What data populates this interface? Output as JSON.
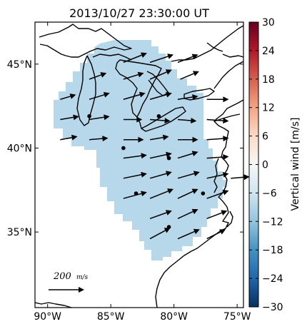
{
  "title": "2013/10/27 23:30:00 UT",
  "map": {
    "lat_ticks": [
      "45°N",
      "40°N",
      "35°N"
    ],
    "lat_values": [
      45,
      40,
      35
    ],
    "lon_ticks": [
      "90°W",
      "85°W",
      "80°W",
      "75°W"
    ],
    "lon_values": [
      -90,
      -85,
      -80,
      -75
    ],
    "extent": {
      "lon_min": -91.0,
      "lon_max": -74.5,
      "lat_min": 30.5,
      "lat_max": 47.5
    },
    "coverage_color": "#b7d8ea",
    "dot_sites": [
      {
        "lon": -86.7,
        "lat": 41.9
      },
      {
        "lon": -81.2,
        "lat": 41.9
      },
      {
        "lon": -84.0,
        "lat": 40.0
      },
      {
        "lon": -80.4,
        "lat": 39.4
      },
      {
        "lon": -83.0,
        "lat": 37.3
      },
      {
        "lon": -77.7,
        "lat": 37.3
      },
      {
        "lon": -80.4,
        "lat": 35.3
      }
    ]
  },
  "scale_legend": {
    "label_value": "200",
    "label_units": "m/s"
  },
  "colorbar": {
    "label": "Vertical wind [m/s]",
    "ticks": [
      "30",
      "24",
      "18",
      "12",
      "6",
      "0",
      "−6",
      "−12",
      "−18",
      "−24",
      "−30"
    ],
    "vmin": -30,
    "vmax": 30,
    "cmap": [
      "#053061",
      "#2166ac",
      "#4393c3",
      "#92c5de",
      "#d1e5f0",
      "#f7f7f7",
      "#fddbc7",
      "#f4a582",
      "#d6604d",
      "#b2182b",
      "#67001f"
    ]
  },
  "chart_data": {
    "type": "heatmap",
    "title": "2013/10/27 23:30:00 UT",
    "xlabel": "",
    "ylabel": "",
    "x_range": [
      -91.0,
      -74.5
    ],
    "y_range": [
      30.5,
      47.5
    ],
    "z_label": "Vertical wind [m/s]",
    "z_range": [
      -30,
      30
    ],
    "coverage_value": -9,
    "wind_vectors_units": "m/s",
    "wind_vectors": [
      {
        "lon": -84.0,
        "lat": 45.1,
        "u": 150,
        "v": 60
      },
      {
        "lon": -81.9,
        "lat": 45.1,
        "u": 150,
        "v": 50
      },
      {
        "lon": -79.7,
        "lat": 45.1,
        "u": 130,
        "v": 50
      },
      {
        "lon": -86.7,
        "lat": 44.1,
        "u": 110,
        "v": 40
      },
      {
        "lon": -84.0,
        "lat": 44.1,
        "u": 130,
        "v": 40
      },
      {
        "lon": -81.9,
        "lat": 44.1,
        "u": 140,
        "v": 60
      },
      {
        "lon": -79.5,
        "lat": 44.1,
        "u": 120,
        "v": 50
      },
      {
        "lon": -89.0,
        "lat": 42.9,
        "u": 100,
        "v": 30
      },
      {
        "lon": -86.7,
        "lat": 42.9,
        "u": 130,
        "v": 40
      },
      {
        "lon": -84.0,
        "lat": 42.9,
        "u": 140,
        "v": 40
      },
      {
        "lon": -81.9,
        "lat": 42.9,
        "u": 140,
        "v": 40
      },
      {
        "lon": -79.7,
        "lat": 42.9,
        "u": 130,
        "v": 20
      },
      {
        "lon": -77.4,
        "lat": 42.9,
        "u": 140,
        "v": 0
      },
      {
        "lon": -89.0,
        "lat": 41.7,
        "u": 120,
        "v": 20
      },
      {
        "lon": -86.7,
        "lat": 41.7,
        "u": 130,
        "v": 20
      },
      {
        "lon": -84.0,
        "lat": 41.7,
        "u": 120,
        "v": 0
      },
      {
        "lon": -81.9,
        "lat": 41.7,
        "u": 130,
        "v": -10
      },
      {
        "lon": -79.7,
        "lat": 41.7,
        "u": 120,
        "v": -10
      },
      {
        "lon": -77.4,
        "lat": 41.7,
        "u": 140,
        "v": -10
      },
      {
        "lon": -89.0,
        "lat": 40.5,
        "u": 110,
        "v": 20
      },
      {
        "lon": -86.7,
        "lat": 40.5,
        "u": 120,
        "v": 10
      },
      {
        "lon": -84.0,
        "lat": 40.5,
        "u": 130,
        "v": 0
      },
      {
        "lon": -81.9,
        "lat": 40.5,
        "u": 120,
        "v": 20
      },
      {
        "lon": -79.7,
        "lat": 40.5,
        "u": 130,
        "v": 0
      },
      {
        "lon": -77.4,
        "lat": 40.5,
        "u": 140,
        "v": 10
      },
      {
        "lon": -84.0,
        "lat": 39.4,
        "u": 150,
        "v": 20
      },
      {
        "lon": -81.9,
        "lat": 39.4,
        "u": 140,
        "v": 30
      },
      {
        "lon": -79.7,
        "lat": 39.4,
        "u": 130,
        "v": 40
      },
      {
        "lon": -77.4,
        "lat": 39.4,
        "u": 140,
        "v": 10
      },
      {
        "lon": -84.0,
        "lat": 38.2,
        "u": 150,
        "v": 30
      },
      {
        "lon": -81.9,
        "lat": 38.2,
        "u": 140,
        "v": 40
      },
      {
        "lon": -79.7,
        "lat": 38.2,
        "u": 140,
        "v": 40
      },
      {
        "lon": -77.4,
        "lat": 38.2,
        "u": 140,
        "v": 30
      },
      {
        "lon": -75.5,
        "lat": 38.2,
        "u": 120,
        "v": 10
      },
      {
        "lon": -84.0,
        "lat": 37.0,
        "u": 150,
        "v": 40
      },
      {
        "lon": -81.9,
        "lat": 37.0,
        "u": 150,
        "v": 60
      },
      {
        "lon": -79.7,
        "lat": 37.0,
        "u": 130,
        "v": 60
      },
      {
        "lon": -77.4,
        "lat": 37.0,
        "u": 140,
        "v": 50
      },
      {
        "lon": -81.9,
        "lat": 35.8,
        "u": 140,
        "v": 50
      },
      {
        "lon": -79.7,
        "lat": 35.8,
        "u": 130,
        "v": 60
      },
      {
        "lon": -77.4,
        "lat": 35.8,
        "u": 130,
        "v": 50
      },
      {
        "lon": -81.9,
        "lat": 34.6,
        "u": 130,
        "v": 70
      },
      {
        "lon": -79.7,
        "lat": 34.6,
        "u": 140,
        "v": 60
      },
      {
        "lon": -77.4,
        "lat": 34.6,
        "u": 120,
        "v": 60
      }
    ]
  }
}
